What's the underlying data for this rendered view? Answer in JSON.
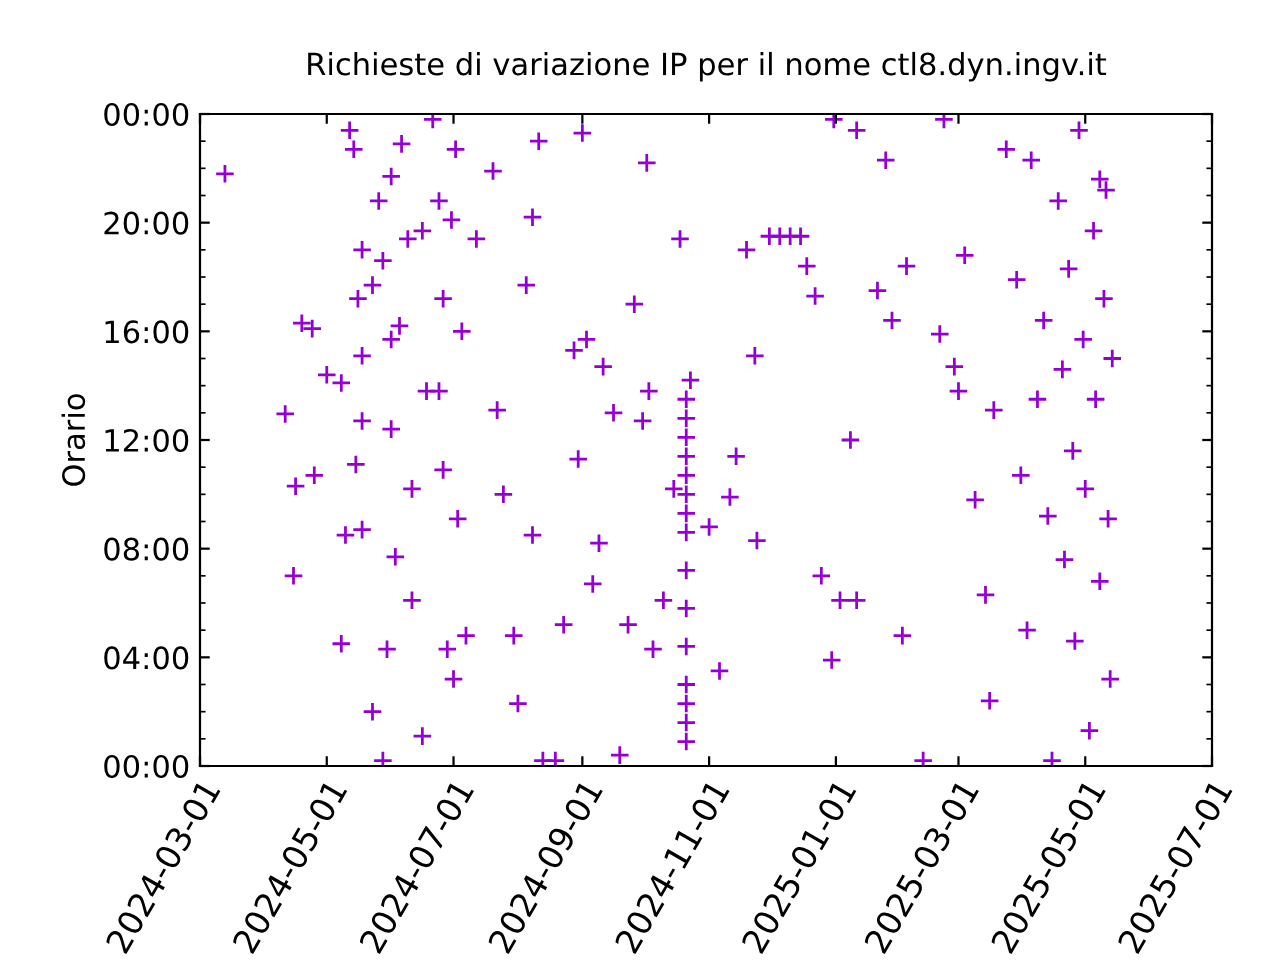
{
  "chart_data": {
    "type": "scatter",
    "title": "Richieste di variazione IP per il nome ctl8.dyn.ingv.it",
    "ylabel": "Orario",
    "marker": "cross",
    "grid": false,
    "legend": false,
    "xlim": [
      "2024-03-01",
      "2025-07-01"
    ],
    "xticks": [
      "2024-03-01",
      "2024-05-01",
      "2024-07-01",
      "2024-09-01",
      "2024-11-01",
      "2025-01-01",
      "2025-03-01",
      "2025-05-01",
      "2025-07-01"
    ],
    "ylim": [
      0,
      24
    ],
    "yticks": [
      {
        "value": 0,
        "label": "00:00"
      },
      {
        "value": 4,
        "label": "04:00"
      },
      {
        "value": 8,
        "label": "08:00"
      },
      {
        "value": 12,
        "label": "12:00"
      },
      {
        "value": 16,
        "label": "16:00"
      },
      {
        "value": 20,
        "label": "20:00"
      },
      {
        "value": 24,
        "label": "00:00"
      }
    ],
    "series": [
      {
        "color": "#9400d3",
        "x": [
          "2024-03-13",
          "2024-04-11",
          "2024-04-16",
          "2024-04-15",
          "2024-04-19",
          "2024-04-24",
          "2024-05-01",
          "2024-05-08",
          "2024-05-08",
          "2024-05-12",
          "2024-05-14",
          "2024-05-18",
          "2024-05-16",
          "2024-05-18",
          "2024-05-15",
          "2024-05-18",
          "2024-05-23",
          "2024-05-28",
          "2024-05-28",
          "2024-05-26",
          "2024-06-01",
          "2024-06-01",
          "2024-06-01",
          "2024-06-03",
          "2024-05-30",
          "2024-06-06",
          "2024-06-09",
          "2024-06-11",
          "2024-06-16",
          "2024-06-21",
          "2024-06-24",
          "2024-06-26",
          "2024-06-24",
          "2024-06-26",
          "2024-06-28",
          "2024-07-02",
          "2024-07-05",
          "2024-07-03",
          "2024-07-01",
          "2024-07-12",
          "2024-07-20",
          "2024-07-22",
          "2024-07-25",
          "2024-07-30",
          "2024-08-01",
          "2024-08-05",
          "2024-08-08",
          "2024-08-08",
          "2024-08-11",
          "2024-08-13",
          "2024-08-19",
          "2024-08-23",
          "2024-08-28",
          "2024-08-30",
          "2024-09-01",
          "2024-09-03",
          "2024-09-06",
          "2024-09-09",
          "2024-09-11",
          "2024-09-16",
          "2024-09-19",
          "2024-09-23",
          "2024-09-26",
          "2024-09-30",
          "2024-10-02",
          "2024-10-03",
          "2024-10-05",
          "2024-10-10",
          "2024-10-15",
          "2024-10-18",
          "2024-10-21",
          "2024-10-21",
          "2024-10-21",
          "2024-10-21",
          "2024-10-21",
          "2024-10-21",
          "2024-10-21",
          "2024-10-21",
          "2024-10-21",
          "2024-10-21",
          "2024-10-21",
          "2024-10-21",
          "2024-10-21",
          "2024-10-21",
          "2024-10-21",
          "2024-10-23",
          "2024-11-01",
          "2024-11-06",
          "2024-11-11",
          "2024-11-14",
          "2024-11-19",
          "2024-11-23",
          "2024-11-24",
          "2024-11-30",
          "2024-12-05",
          "2024-12-10",
          "2024-12-15",
          "2024-12-18",
          "2024-12-22",
          "2024-12-31",
          "2024-12-25",
          "2024-12-30",
          "2025-01-03",
          "2025-01-11",
          "2025-01-08",
          "2025-01-11",
          "2025-01-21",
          "2025-01-25",
          "2025-01-28",
          "2025-02-04",
          "2025-02-02",
          "2025-02-12",
          "2025-02-20",
          "2025-02-22",
          "2025-02-27",
          "2025-03-01",
          "2025-03-04",
          "2025-03-09",
          "2025-03-14",
          "2025-03-16",
          "2025-03-18",
          "2025-03-24",
          "2025-03-29",
          "2025-03-31",
          "2025-04-03",
          "2025-04-05",
          "2025-04-08",
          "2025-04-11",
          "2025-04-13",
          "2025-04-15",
          "2025-04-18",
          "2025-04-20",
          "2025-04-21",
          "2025-04-23",
          "2025-04-25",
          "2025-04-26",
          "2025-04-28",
          "2025-04-30",
          "2025-05-01",
          "2025-05-03",
          "2025-05-05",
          "2025-05-06",
          "2025-05-08",
          "2025-05-10",
          "2025-05-11",
          "2025-05-12",
          "2025-05-13",
          "2025-05-14",
          "2025-05-08",
          "2024-04-25",
          "2024-05-10",
          "2024-05-23",
          "2024-06-11",
          "2024-06-18",
          "2024-07-07",
          "2024-06-16",
          "2024-05-18",
          "2024-06-30",
          "2024-06-05"
        ],
        "values": [
          21.8,
          12.96,
          10.3,
          7.0,
          16.3,
          16.1,
          14.4,
          14.1,
          4.5,
          23.4,
          22.7,
          19.0,
          17.2,
          15.1,
          11.1,
          8.7,
          2.0,
          0.2,
          18.6,
          20.8,
          21.7,
          15.7,
          12.4,
          7.7,
          4.3,
          22.9,
          19.4,
          10.2,
          1.1,
          23.8,
          20.8,
          17.2,
          13.8,
          10.9,
          4.3,
          22.7,
          16.0,
          9.1,
          3.2,
          19.4,
          21.9,
          13.1,
          10.0,
          4.8,
          2.3,
          17.7,
          20.2,
          8.5,
          23.0,
          0.2,
          0.2,
          5.2,
          15.3,
          11.3,
          23.3,
          15.7,
          6.7,
          8.2,
          14.7,
          13.0,
          0.4,
          5.2,
          17.0,
          12.7,
          22.2,
          13.8,
          4.3,
          6.1,
          10.2,
          19.4,
          13.5,
          12.8,
          12.1,
          11.4,
          10.7,
          10.0,
          9.3,
          8.6,
          7.2,
          5.8,
          4.4,
          3.0,
          2.3,
          1.6,
          0.9,
          14.2,
          8.8,
          3.5,
          9.9,
          11.4,
          19.0,
          15.1,
          8.3,
          19.5,
          19.5,
          19.5,
          19.5,
          18.4,
          17.3,
          23.8,
          7.0,
          3.9,
          6.1,
          6.1,
          12.0,
          23.4,
          17.5,
          22.3,
          16.4,
          18.4,
          4.8,
          0.2,
          15.9,
          23.8,
          14.7,
          13.8,
          18.8,
          9.8,
          6.3,
          2.4,
          13.1,
          22.7,
          17.9,
          10.7,
          5.0,
          22.3,
          13.5,
          16.4,
          9.2,
          0.2,
          20.8,
          14.6,
          7.6,
          18.3,
          11.6,
          4.6,
          23.4,
          15.7,
          10.2,
          1.3,
          19.7,
          13.5,
          6.8,
          17.2,
          21.2,
          9.1,
          3.2,
          15.0,
          21.6,
          10.7,
          8.5,
          17.7,
          6.1,
          13.8,
          4.8,
          19.7,
          12.7,
          20.1,
          16.2
        ]
      }
    ]
  }
}
